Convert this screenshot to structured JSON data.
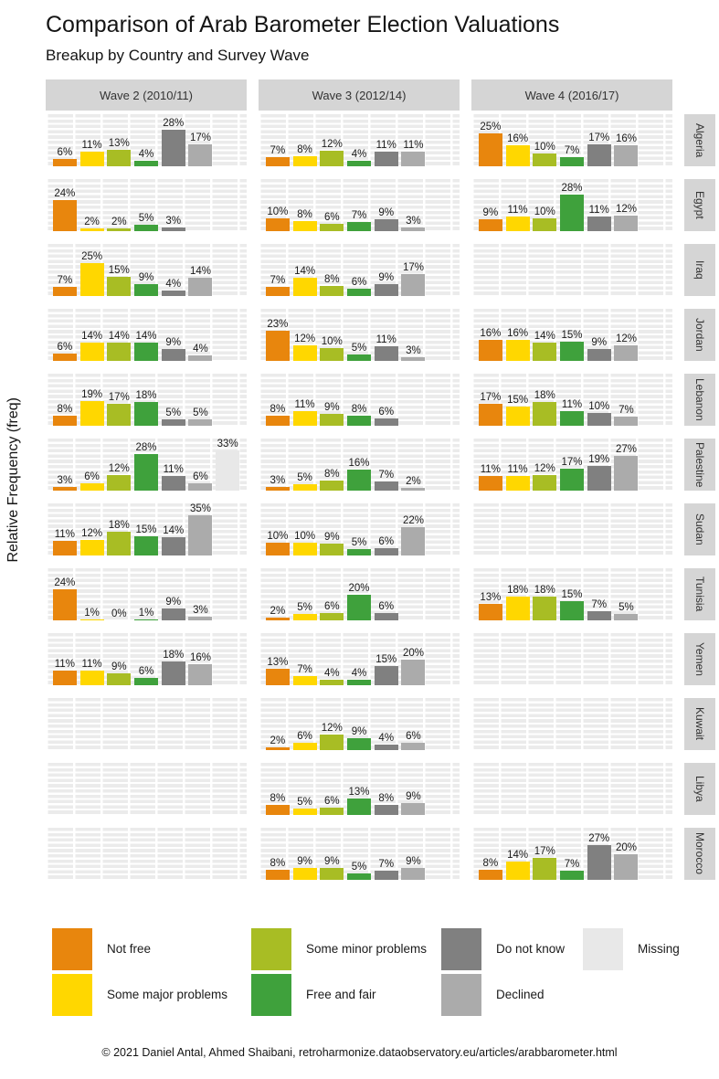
{
  "header": {
    "title": "Comparison of Arab Barometer Election Valuations",
    "subtitle": "Breakup by Country and Survey Wave"
  },
  "footer": {
    "caption": "© 2021 Daniel Antal, Ahmed Shaibani, retroharmonize.dataobservatory.eu/articles/arabbarometer.html"
  },
  "chart_data": {
    "type": "bar",
    "title": "Comparison of Arab Barometer Election Valuations",
    "subtitle": "Breakup by Country and Survey Wave",
    "ylabel": "Relative Frequency (freq)",
    "unit": "%",
    "ylim": [
      0,
      40
    ],
    "grid": true,
    "legend_position": "bottom",
    "facet_columns": [
      "Wave 2 (2010/11)",
      "Wave 3 (2012/14)",
      "Wave 4 (2016/17)"
    ],
    "categories": [
      "Not free",
      "Some major problems",
      "Some minor problems",
      "Free and fair",
      "Do not know",
      "Declined",
      "Missing"
    ],
    "colors": [
      "#E8860D",
      "#FFD700",
      "#A8BD24",
      "#3FA13C",
      "#808080",
      "#ABABAB",
      "#E8E8E8"
    ],
    "legend_columns": [
      [
        0,
        1
      ],
      [
        2,
        3
      ],
      [
        4,
        5
      ],
      [
        6
      ]
    ],
    "rows": [
      {
        "country": "Algeria",
        "waves": [
          [
            6,
            11,
            13,
            4,
            28,
            17,
            null
          ],
          [
            7,
            8,
            12,
            4,
            11,
            11,
            null
          ],
          [
            25,
            16,
            10,
            7,
            17,
            16,
            null
          ]
        ]
      },
      {
        "country": "Egypt",
        "waves": [
          [
            24,
            2,
            2,
            5,
            3,
            null,
            null
          ],
          [
            10,
            8,
            6,
            7,
            9,
            3,
            null
          ],
          [
            9,
            11,
            10,
            28,
            11,
            12,
            null
          ]
        ]
      },
      {
        "country": "Iraq",
        "waves": [
          [
            7,
            25,
            15,
            9,
            4,
            14,
            null
          ],
          [
            7,
            14,
            8,
            6,
            9,
            17,
            null
          ],
          null
        ]
      },
      {
        "country": "Jordan",
        "waves": [
          [
            6,
            14,
            14,
            14,
            9,
            4,
            null
          ],
          [
            23,
            12,
            10,
            5,
            11,
            3,
            null
          ],
          [
            16,
            16,
            14,
            15,
            9,
            12,
            null
          ]
        ]
      },
      {
        "country": "Lebanon",
        "waves": [
          [
            8,
            19,
            17,
            18,
            5,
            5,
            null
          ],
          [
            8,
            11,
            9,
            8,
            6,
            null,
            null
          ],
          [
            17,
            15,
            18,
            11,
            10,
            7,
            null
          ]
        ]
      },
      {
        "country": "Palestine",
        "waves": [
          [
            3,
            6,
            12,
            28,
            11,
            6,
            33
          ],
          [
            3,
            5,
            8,
            16,
            7,
            2,
            null
          ],
          [
            11,
            11,
            12,
            17,
            19,
            27,
            null
          ]
        ]
      },
      {
        "country": "Sudan",
        "waves": [
          [
            11,
            12,
            18,
            15,
            14,
            35,
            null
          ],
          [
            10,
            10,
            9,
            5,
            6,
            22,
            null
          ],
          null
        ]
      },
      {
        "country": "Tunisia",
        "waves": [
          [
            24,
            1,
            0,
            1,
            9,
            3,
            null
          ],
          [
            2,
            5,
            6,
            20,
            6,
            null,
            null
          ],
          [
            13,
            18,
            18,
            15,
            7,
            5,
            null
          ]
        ]
      },
      {
        "country": "Yemen",
        "waves": [
          [
            11,
            11,
            9,
            6,
            18,
            16,
            null
          ],
          [
            13,
            7,
            4,
            4,
            15,
            20,
            null
          ],
          null
        ]
      },
      {
        "country": "Kuwait",
        "waves": [
          null,
          [
            2,
            6,
            12,
            9,
            4,
            6,
            null
          ],
          null
        ]
      },
      {
        "country": "Libya",
        "waves": [
          null,
          [
            8,
            5,
            6,
            13,
            8,
            9,
            null
          ],
          null
        ]
      },
      {
        "country": "Morocco",
        "waves": [
          null,
          [
            8,
            9,
            9,
            5,
            7,
            9,
            null
          ],
          [
            8,
            14,
            17,
            7,
            27,
            20,
            null
          ]
        ]
      }
    ]
  }
}
